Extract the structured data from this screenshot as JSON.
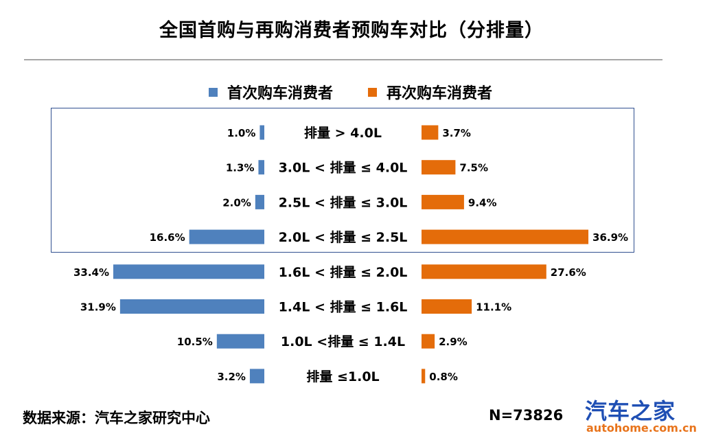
{
  "title": "全国首购与再购消费者预购车对比（分排量）",
  "colors": {
    "first": "#4f81bd",
    "repeat": "#e46c0a",
    "rule": "#a6a6a6",
    "box": "#2f4f8f"
  },
  "footer": {
    "source": "数据来源：汽车之家研究中心",
    "sample": "N=73826",
    "logo_main": "汽车之家",
    "logo_sub": "autohome.com.cn"
  },
  "chart_data": {
    "type": "bar",
    "orientation": "horizontal-butterfly",
    "title": "全国首购与再购消费者预购车对比（分排量）",
    "unit": "%",
    "categories": [
      "排量 > 4.0L",
      "3.0L < 排量 ≤ 4.0L",
      "2.5L < 排量 ≤ 3.0L",
      "2.0L < 排量 ≤ 2.5L",
      "1.6L < 排量 ≤ 2.0L",
      "1.4L < 排量 ≤ 1.6L",
      "1.0L <排量 ≤ 1.4L",
      "排量 ≤1.0L"
    ],
    "series": [
      {
        "name": "首次购车消费者",
        "color": "#4f81bd",
        "values": [
          1.0,
          1.3,
          2.0,
          16.6,
          33.4,
          31.9,
          10.5,
          3.2
        ],
        "labels": [
          "1.0%",
          "1.3%",
          "2.0%",
          "16.6%",
          "33.4%",
          "31.9%",
          "10.5%",
          "3.2%"
        ]
      },
      {
        "name": "再次购车消费者",
        "color": "#e46c0a",
        "values": [
          3.7,
          7.5,
          9.4,
          36.9,
          27.6,
          11.1,
          2.9,
          0.8
        ],
        "labels": [
          "3.7%",
          "7.5%",
          "9.4%",
          "36.9%",
          "27.6%",
          "11.1%",
          "2.9%",
          "0.8%"
        ]
      }
    ],
    "legend_position": "top-center",
    "grid": false
  }
}
